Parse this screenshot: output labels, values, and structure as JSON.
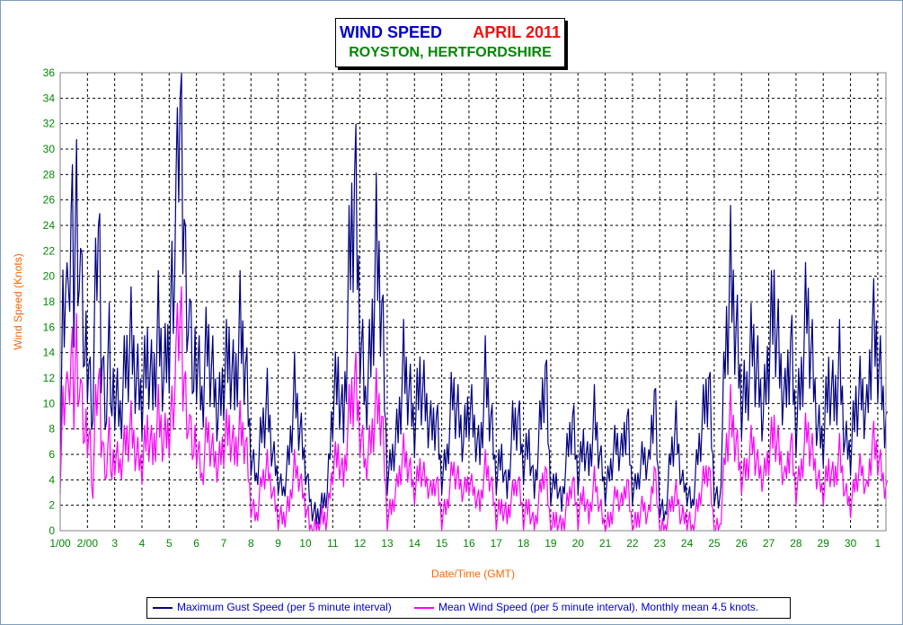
{
  "chart_data": {
    "type": "line",
    "title": "WIND SPEED",
    "title_date": "APRIL 2011",
    "subtitle": "ROYSTON, HERTFORDSHIRE",
    "xlabel": "Date/Time (GMT)",
    "ylabel": "Wind Speed (Knots)",
    "ylim": [
      0,
      36
    ],
    "yticks": [
      "0",
      "2",
      "4",
      "6",
      "8",
      "10",
      "12",
      "14",
      "16",
      "18",
      "20",
      "22",
      "24",
      "26",
      "28",
      "30",
      "32",
      "34",
      "36"
    ],
    "xticks": [
      "1/00",
      "2/00",
      "3",
      "4",
      "5",
      "6",
      "7",
      "8",
      "9",
      "10",
      "11",
      "12",
      "13",
      "14",
      "15",
      "16",
      "17",
      "18",
      "19",
      "20",
      "21",
      "22",
      "23",
      "24",
      "25",
      "26",
      "27",
      "28",
      "29",
      "30",
      "1"
    ],
    "grid": true,
    "legend": "bottom",
    "series": [
      {
        "name": "Maximum Gust Speed (per 5 minute interval)",
        "color": "#000080",
        "day": [
          1.0,
          1.1,
          1.2,
          1.3,
          1.4,
          1.5,
          1.6,
          1.7,
          1.8,
          1.9,
          2.0,
          2.1,
          2.2,
          2.3,
          2.4,
          2.5,
          2.6,
          2.7,
          2.8,
          2.9,
          3.0,
          3.2,
          3.4,
          3.6,
          3.8,
          4.0,
          4.2,
          4.4,
          4.6,
          4.8,
          5.0,
          5.1,
          5.2,
          5.3,
          5.4,
          5.5,
          5.6,
          5.7,
          5.8,
          5.9,
          6.0,
          6.2,
          6.4,
          6.6,
          6.8,
          7.0,
          7.2,
          7.4,
          7.6,
          7.8,
          8.0,
          8.2,
          8.4,
          8.6,
          8.8,
          9.0,
          9.2,
          9.4,
          9.6,
          9.8,
          10.0,
          10.2,
          10.4,
          10.6,
          10.8,
          11.0,
          11.2,
          11.4,
          11.6,
          11.8,
          12.0,
          12.2,
          12.4,
          12.6,
          12.8,
          13.0,
          13.2,
          13.4,
          13.6,
          13.8,
          14.0,
          14.2,
          14.4,
          14.6,
          14.8,
          15.0,
          15.2,
          15.4,
          15.6,
          15.8,
          16.0,
          16.2,
          16.4,
          16.6,
          16.8,
          17.0,
          17.2,
          17.4,
          17.6,
          17.8,
          18.0,
          18.2,
          18.4,
          18.6,
          18.8,
          19.0,
          19.2,
          19.4,
          19.6,
          19.8,
          20.0,
          20.2,
          20.4,
          20.6,
          20.8,
          21.0,
          21.2,
          21.4,
          21.6,
          21.8,
          22.0,
          22.2,
          22.4,
          22.6,
          22.8,
          23.0,
          23.2,
          23.4,
          23.6,
          23.8,
          24.0,
          24.2,
          24.4,
          24.6,
          24.8,
          25.0,
          25.2,
          25.4,
          25.6,
          25.8,
          26.0,
          26.2,
          26.4,
          26.6,
          26.8,
          27.0,
          27.2,
          27.4,
          27.6,
          27.8,
          28.0,
          28.2,
          28.4,
          28.6,
          28.8,
          29.0,
          29.2,
          29.4,
          29.6,
          29.8,
          30.0,
          30.2,
          30.4,
          30.6,
          30.8,
          31.0,
          31.3
        ],
        "values": [
          6,
          18,
          22,
          15,
          25,
          20,
          27,
          22,
          17,
          13,
          14,
          12,
          10,
          18,
          24,
          15,
          12,
          10,
          14,
          9,
          11,
          9,
          13,
          15,
          12,
          10,
          14,
          11,
          16,
          12,
          15,
          20,
          23,
          26,
          34,
          28,
          21,
          18,
          14,
          11,
          14,
          10,
          15,
          12,
          9,
          12,
          14,
          11,
          16,
          13,
          6,
          4,
          8,
          10,
          6,
          4,
          3,
          6,
          11,
          8,
          5,
          2,
          1,
          2,
          3,
          10,
          12,
          8,
          20,
          28,
          16,
          10,
          14,
          22,
          18,
          4,
          6,
          8,
          13,
          11,
          8,
          12,
          10,
          8,
          9,
          4,
          6,
          11,
          9,
          7,
          10,
          8,
          6,
          12,
          9,
          4,
          6,
          3,
          8,
          9,
          5,
          7,
          3,
          8,
          13,
          3,
          4,
          2,
          6,
          9,
          4,
          7,
          5,
          9,
          6,
          3,
          5,
          7,
          6,
          9,
          3,
          4,
          6,
          5,
          11,
          2,
          1,
          6,
          8,
          4,
          3,
          2,
          6,
          9,
          12,
          3,
          2,
          14,
          20,
          16,
          10,
          11,
          15,
          12,
          9,
          14,
          18,
          13,
          10,
          15,
          8,
          12,
          18,
          13,
          8,
          7,
          12,
          10,
          13,
          7,
          6,
          10,
          11,
          9,
          16,
          14,
          8,
          18,
          10,
          6,
          12
        ]
      },
      {
        "name": "Mean Wind Speed (per 5 minute interval). Monthly mean 4.5 knots.",
        "color": "#ff00ff",
        "day": [
          1.0,
          1.1,
          1.2,
          1.3,
          1.4,
          1.5,
          1.6,
          1.7,
          1.8,
          1.9,
          2.0,
          2.1,
          2.2,
          2.3,
          2.4,
          2.5,
          2.6,
          2.7,
          2.8,
          2.9,
          3.0,
          3.2,
          3.4,
          3.6,
          3.8,
          4.0,
          4.2,
          4.4,
          4.6,
          4.8,
          5.0,
          5.1,
          5.2,
          5.3,
          5.4,
          5.5,
          5.6,
          5.7,
          5.8,
          5.9,
          6.0,
          6.2,
          6.4,
          6.6,
          6.8,
          7.0,
          7.2,
          7.4,
          7.6,
          7.8,
          8.0,
          8.2,
          8.4,
          8.6,
          8.8,
          9.0,
          9.2,
          9.4,
          9.6,
          9.8,
          10.0,
          10.2,
          10.4,
          10.6,
          10.8,
          11.0,
          11.2,
          11.4,
          11.6,
          11.8,
          12.0,
          12.2,
          12.4,
          12.6,
          12.8,
          13.0,
          13.2,
          13.4,
          13.6,
          13.8,
          14.0,
          14.2,
          14.4,
          14.6,
          14.8,
          15.0,
          15.2,
          15.4,
          15.6,
          15.8,
          16.0,
          16.2,
          16.4,
          16.6,
          16.8,
          17.0,
          17.2,
          17.4,
          17.6,
          17.8,
          18.0,
          18.2,
          18.4,
          18.6,
          18.8,
          19.0,
          19.2,
          19.4,
          19.6,
          19.8,
          20.0,
          20.2,
          20.4,
          20.6,
          20.8,
          21.0,
          21.2,
          21.4,
          21.6,
          21.8,
          22.0,
          22.2,
          22.4,
          22.6,
          22.8,
          23.0,
          23.2,
          23.4,
          23.6,
          23.8,
          24.0,
          24.2,
          24.4,
          24.6,
          24.8,
          25.0,
          25.2,
          25.4,
          25.6,
          25.8,
          26.0,
          26.2,
          26.4,
          26.6,
          26.8,
          27.0,
          27.2,
          27.4,
          27.6,
          27.8,
          28.0,
          28.2,
          28.4,
          28.6,
          28.8,
          29.0,
          29.2,
          29.4,
          29.6,
          29.8,
          30.0,
          30.2,
          30.4,
          30.6,
          30.8,
          31.0,
          31.3
        ],
        "values": [
          4,
          10,
          13,
          9,
          14,
          11,
          15,
          12,
          9,
          7,
          8,
          7,
          3,
          9,
          12,
          8,
          6,
          5,
          7,
          4,
          6,
          5,
          7,
          8,
          6,
          5,
          8,
          6,
          9,
          7,
          8,
          10,
          12,
          14,
          17,
          13,
          11,
          9,
          7,
          6,
          7,
          4,
          8,
          6,
          5,
          7,
          8,
          6,
          8,
          7,
          2,
          1,
          4,
          5,
          3,
          1,
          1,
          2,
          5,
          4,
          2,
          0,
          0,
          1,
          1,
          5,
          6,
          4,
          9,
          12,
          8,
          5,
          7,
          10,
          9,
          1,
          2,
          4,
          6,
          5,
          3,
          5,
          4,
          3,
          4,
          1,
          2,
          5,
          4,
          3,
          4,
          3,
          2,
          5,
          4,
          1,
          2,
          1,
          3,
          4,
          1,
          2,
          0,
          3,
          5,
          0,
          1,
          0,
          2,
          4,
          1,
          3,
          1,
          4,
          2,
          0,
          1,
          3,
          2,
          4,
          0,
          1,
          2,
          1,
          5,
          0,
          0,
          2,
          3,
          1,
          1,
          0,
          2,
          4,
          5,
          0,
          0,
          6,
          9,
          7,
          4,
          5,
          7,
          5,
          4,
          6,
          8,
          6,
          4,
          7,
          3,
          5,
          8,
          6,
          4,
          3,
          5,
          4,
          6,
          3,
          2,
          4,
          5,
          3,
          7,
          6,
          3,
          8,
          4,
          2,
          6
        ]
      }
    ]
  }
}
